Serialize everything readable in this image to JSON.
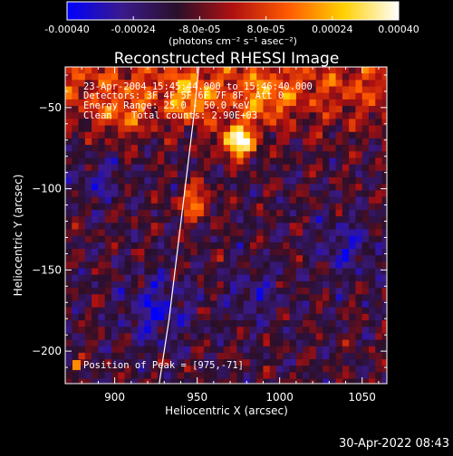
{
  "chart_data": {
    "type": "heatmap",
    "title": "Reconstructed RHESSI Image",
    "xlabel": "Heliocentric X (arcsec)",
    "ylabel": "Heliocentric Y (arcsec)",
    "xlim": [
      870,
      1065
    ],
    "ylim": [
      -220,
      -25
    ],
    "x_ticks": [
      900,
      950,
      1000,
      1050
    ],
    "y_ticks": [
      -50,
      -100,
      -150,
      -200
    ],
    "colorbar": {
      "colormap": "blue-purple-red-yellow-white",
      "colors": [
        "#0000ff",
        "#3a1a8a",
        "#2a0f2a",
        "#b01010",
        "#ff5a00",
        "#ffd000",
        "#ffffff"
      ],
      "range": [
        -0.0004,
        0.0004
      ],
      "tick_labels": [
        "-0.00040",
        "-0.00024",
        "-8.0e-05",
        "8.0e-05",
        "0.00024",
        "0.00040"
      ],
      "units": "(photons cm⁻² s⁻¹ asec⁻²)"
    },
    "annotations": {
      "time_range": "23-Apr-2004 15:45:44.000 to 15:46:40.000",
      "detectors": "Detectors: 3F 4F 5F 6F 7F 8F, Att 0",
      "energy_range": "Energy Range: 25.0 - 50.0 keV",
      "algorithm": "Clean",
      "total_counts": "Total counts: 2.90E+03",
      "peak": "Position of Peak = [975,-71]"
    },
    "peak_position": [
      975,
      -71
    ],
    "limb_curve": {
      "x": [
        951,
        948,
        945,
        942,
        939,
        936,
        933,
        930,
        927
      ],
      "y": [
        -25,
        -55,
        -80,
        -105,
        -130,
        -155,
        -180,
        -200,
        -220
      ]
    },
    "grid": false
  },
  "footer": {
    "timestamp": "30-Apr-2022 08:43"
  }
}
